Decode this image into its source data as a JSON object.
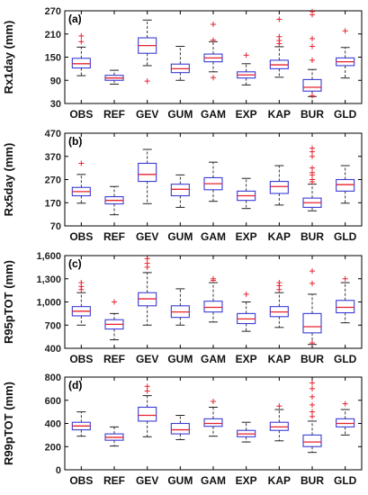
{
  "chart_data": [
    {
      "type": "box",
      "panel_label": "(a)",
      "ylabel": "Rx1day (mm)",
      "ylim": [
        30,
        270
      ],
      "yticks": [
        "30",
        "90",
        "150",
        "210",
        "270"
      ],
      "ytick_values": [
        30,
        90,
        150,
        210,
        270
      ],
      "categories": [
        "OBS",
        "REF",
        "GEV",
        "GUM",
        "GAM",
        "EXP",
        "KAP",
        "BUR",
        "GLD"
      ],
      "boxes": [
        {
          "whisker_low": 102,
          "q1": 122,
          "median": 133,
          "q3": 147,
          "whisker_high": 176,
          "outliers": [
            190,
            205
          ]
        },
        {
          "whisker_low": 80,
          "q1": 90,
          "median": 96,
          "q3": 103,
          "whisker_high": 116,
          "outliers": []
        },
        {
          "whisker_low": 128,
          "q1": 160,
          "median": 180,
          "q3": 200,
          "whisker_high": 246,
          "outliers": [
            88
          ]
        },
        {
          "whisker_low": 90,
          "q1": 110,
          "median": 120,
          "q3": 132,
          "whisker_high": 178,
          "outliers": []
        },
        {
          "whisker_low": 112,
          "q1": 138,
          "median": 148,
          "q3": 158,
          "whisker_high": 190,
          "outliers": [
            97,
            194,
            235
          ]
        },
        {
          "whisker_low": 78,
          "q1": 96,
          "median": 104,
          "q3": 112,
          "whisker_high": 133,
          "outliers": [
            155
          ]
        },
        {
          "whisker_low": 98,
          "q1": 120,
          "median": 130,
          "q3": 142,
          "whisker_high": 177,
          "outliers": [
            185,
            193,
            203,
            248
          ]
        },
        {
          "whisker_low": 48,
          "q1": 62,
          "median": 72,
          "q3": 92,
          "whisker_high": 118,
          "outliers": [
            50,
            142,
            178,
            198,
            260,
            268
          ]
        },
        {
          "whisker_low": 96,
          "q1": 128,
          "median": 138,
          "q3": 148,
          "whisker_high": 175,
          "outliers": [
            218
          ]
        }
      ]
    },
    {
      "type": "box",
      "panel_label": "(b)",
      "ylabel": "Rx5day (mm)",
      "ylim": [
        70,
        470
      ],
      "yticks": [
        "70",
        "170",
        "270",
        "370",
        "470"
      ],
      "ytick_values": [
        70,
        170,
        270,
        370,
        470
      ],
      "categories": [
        "OBS",
        "REF",
        "GEV",
        "GUM",
        "GAM",
        "EXP",
        "KAP",
        "BUR",
        "GLD"
      ],
      "boxes": [
        {
          "whisker_low": 168,
          "q1": 200,
          "median": 218,
          "q3": 236,
          "whisker_high": 292,
          "outliers": [
            340
          ]
        },
        {
          "whisker_low": 118,
          "q1": 165,
          "median": 180,
          "q3": 196,
          "whisker_high": 240,
          "outliers": []
        },
        {
          "whisker_low": 166,
          "q1": 262,
          "median": 292,
          "q3": 340,
          "whisker_high": 400,
          "outliers": []
        },
        {
          "whisker_low": 150,
          "q1": 200,
          "median": 228,
          "q3": 250,
          "whisker_high": 290,
          "outliers": []
        },
        {
          "whisker_low": 176,
          "q1": 226,
          "median": 252,
          "q3": 278,
          "whisker_high": 345,
          "outliers": []
        },
        {
          "whisker_low": 145,
          "q1": 180,
          "median": 200,
          "q3": 220,
          "whisker_high": 275,
          "outliers": []
        },
        {
          "whisker_low": 160,
          "q1": 210,
          "median": 240,
          "q3": 262,
          "whisker_high": 330,
          "outliers": []
        },
        {
          "whisker_low": 135,
          "q1": 150,
          "median": 170,
          "q3": 190,
          "whisker_high": 250,
          "outliers": [
            260,
            270,
            290,
            300,
            320,
            370,
            390,
            405
          ]
        },
        {
          "whisker_low": 168,
          "q1": 220,
          "median": 248,
          "q3": 270,
          "whisker_high": 330,
          "outliers": []
        }
      ]
    },
    {
      "type": "box",
      "panel_label": "(c)",
      "ylabel": "R95pTOT (mm)",
      "ylim": [
        400,
        1600
      ],
      "yticks": [
        "400",
        "700",
        "1,000",
        "1,300",
        "1,600"
      ],
      "ytick_values": [
        400,
        700,
        1000,
        1300,
        1600
      ],
      "categories": [
        "OBS",
        "REF",
        "GEV",
        "GUM",
        "GAM",
        "EXP",
        "KAP",
        "BUR",
        "GLD"
      ],
      "boxes": [
        {
          "whisker_low": 700,
          "q1": 820,
          "median": 880,
          "q3": 940,
          "whisker_high": 1120,
          "outliers": [
            1160,
            1200,
            1250
          ]
        },
        {
          "whisker_low": 510,
          "q1": 650,
          "median": 710,
          "q3": 770,
          "whisker_high": 850,
          "outliers": [
            1000
          ]
        },
        {
          "whisker_low": 700,
          "q1": 950,
          "median": 1040,
          "q3": 1120,
          "whisker_high": 1380,
          "outliers": [
            1450,
            1500,
            1560
          ]
        },
        {
          "whisker_low": 700,
          "q1": 800,
          "median": 870,
          "q3": 950,
          "whisker_high": 1170,
          "outliers": []
        },
        {
          "whisker_low": 740,
          "q1": 870,
          "median": 930,
          "q3": 1010,
          "whisker_high": 1250,
          "outliers": [
            1280,
            1300
          ]
        },
        {
          "whisker_low": 620,
          "q1": 720,
          "median": 780,
          "q3": 850,
          "whisker_high": 1000,
          "outliers": [
            1100
          ]
        },
        {
          "whisker_low": 670,
          "q1": 810,
          "median": 870,
          "q3": 940,
          "whisker_high": 1120,
          "outliers": [
            1160,
            1210,
            1250
          ]
        },
        {
          "whisker_low": 450,
          "q1": 600,
          "median": 680,
          "q3": 850,
          "whisker_high": 1100,
          "outliers": [
            470,
            1240,
            1400
          ]
        },
        {
          "whisker_low": 730,
          "q1": 860,
          "median": 930,
          "q3": 1020,
          "whisker_high": 1250,
          "outliers": [
            1300
          ]
        }
      ]
    },
    {
      "type": "box",
      "panel_label": "(d)",
      "ylabel": "R99pTOT (mm)",
      "ylim": [
        0,
        800
      ],
      "yticks": [
        "0",
        "200",
        "400",
        "600",
        "800"
      ],
      "ytick_values": [
        0,
        200,
        400,
        600,
        800
      ],
      "categories": [
        "OBS",
        "REF",
        "GEV",
        "GUM",
        "GAM",
        "EXP",
        "KAP",
        "BUR",
        "GLD"
      ],
      "boxes": [
        {
          "whisker_low": 290,
          "q1": 345,
          "median": 378,
          "q3": 410,
          "whisker_high": 500,
          "outliers": []
        },
        {
          "whisker_low": 205,
          "q1": 255,
          "median": 280,
          "q3": 310,
          "whisker_high": 370,
          "outliers": []
        },
        {
          "whisker_low": 285,
          "q1": 420,
          "median": 470,
          "q3": 540,
          "whisker_high": 640,
          "outliers": [
            680,
            720
          ]
        },
        {
          "whisker_low": 260,
          "q1": 310,
          "median": 345,
          "q3": 400,
          "whisker_high": 470,
          "outliers": []
        },
        {
          "whisker_low": 290,
          "q1": 375,
          "median": 400,
          "q3": 440,
          "whisker_high": 540,
          "outliers": [
            590
          ]
        },
        {
          "whisker_low": 240,
          "q1": 285,
          "median": 310,
          "q3": 340,
          "whisker_high": 410,
          "outliers": []
        },
        {
          "whisker_low": 250,
          "q1": 340,
          "median": 370,
          "q3": 410,
          "whisker_high": 520,
          "outliers": [
            550
          ]
        },
        {
          "whisker_low": 150,
          "q1": 200,
          "median": 240,
          "q3": 300,
          "whisker_high": 420,
          "outliers": [
            460,
            500,
            560,
            630,
            700,
            750
          ]
        },
        {
          "whisker_low": 300,
          "q1": 370,
          "median": 400,
          "q3": 440,
          "whisker_high": 520,
          "outliers": [
            570
          ]
        }
      ]
    }
  ],
  "style": {
    "box_color": "#3b3bd6",
    "median_color": "#e8232e",
    "outlier_color": "#e8232e",
    "whisker_color": "#222222",
    "axis_color": "#000000"
  }
}
